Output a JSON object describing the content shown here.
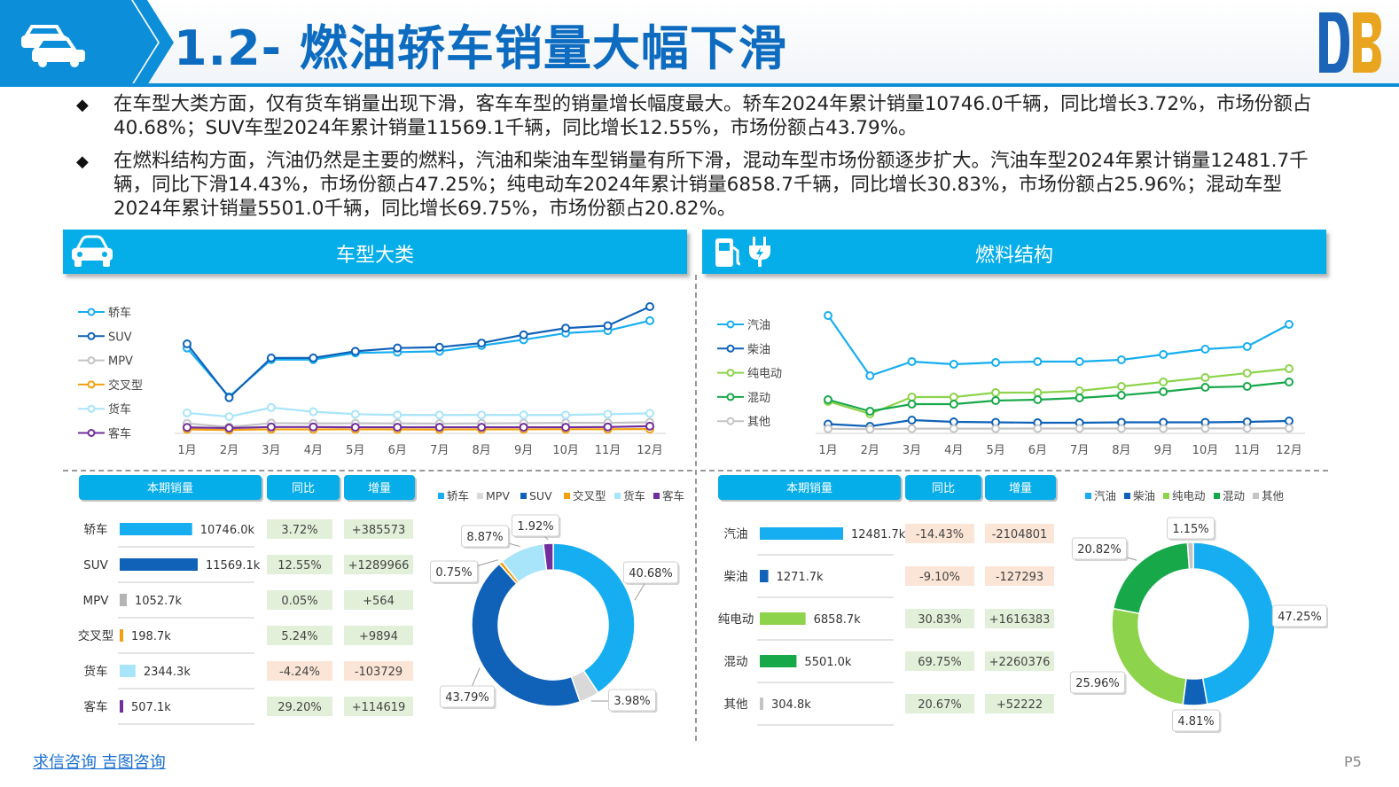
{
  "header": {
    "title": "1.2- 燃油轿车销量大幅下滑"
  },
  "bullets": [
    "在车型大类方面，仅有货车销量出现下滑，客车车型的销量增长幅度最大。轿车2024年累计销量10746.0千辆，同比增长3.72%，市场份额占40.68%；SUV车型2024年累计销量11569.1千辆，同比增长12.55%，市场份额占43.79%。",
    "在燃料结构方面，汽油仍然是主要的燃料，汽油和柴油车型销量有所下滑，混动车型市场份额逐步扩大。汽油车型2024年累计销量12481.7千辆，同比下滑14.43%，市场份额占47.25%；纯电动车2024年累计销量6858.7千辆，同比增长30.83%，市场份额占25.96%；混动车型2024年累计销量5501.0千辆，同比增长69.75%，市场份额占20.82%。"
  ],
  "panels": {
    "left_title": "车型大类",
    "right_title": "燃料结构"
  },
  "table_headers": {
    "current": "本期销量",
    "yoy": "同比",
    "inc": "增量"
  },
  "colors": {
    "primary": "#06aee9",
    "title": "#0e6cc0",
    "positive_bg": "#e2f0d9",
    "negative_bg": "#fbe5d6"
  },
  "footer": {
    "sources": "求信咨询 吉图咨询",
    "page": "P5"
  },
  "chart_data": [
    {
      "type": "line",
      "x": [
        "1月",
        "2月",
        "3月",
        "4月",
        "5月",
        "6月",
        "7月",
        "8月",
        "9月",
        "10月",
        "11月",
        "12月"
      ],
      "legend_position": "left",
      "grid": false,
      "series": [
        {
          "name": "轿车",
          "color": "#16aef0",
          "values": [
            1000,
            410,
            860,
            860,
            940,
            950,
            960,
            1030,
            1100,
            1180,
            1210,
            1330
          ]
        },
        {
          "name": "SUV",
          "color": "#1062b8",
          "values": [
            1050,
            400,
            880,
            880,
            960,
            1000,
            1010,
            1060,
            1160,
            1240,
            1270,
            1500
          ]
        },
        {
          "name": "MPV",
          "color": "#c4c4c4",
          "values": [
            88,
            45,
            92,
            88,
            90,
            88,
            86,
            88,
            92,
            95,
            95,
            102
          ]
        },
        {
          "name": "交叉型",
          "color": "#f2a00f",
          "values": [
            16,
            9,
            17,
            16,
            17,
            16,
            15,
            16,
            17,
            18,
            18,
            20
          ]
        },
        {
          "name": "货车",
          "color": "#a8e4fa",
          "values": [
            215,
            170,
            280,
            230,
            200,
            190,
            190,
            190,
            190,
            190,
            200,
            210
          ]
        },
        {
          "name": "客车",
          "color": "#702f9c",
          "values": [
            40,
            32,
            45,
            45,
            42,
            42,
            42,
            42,
            42,
            42,
            45,
            55
          ]
        }
      ]
    },
    {
      "type": "line",
      "x": [
        "1月",
        "2月",
        "3月",
        "4月",
        "5月",
        "6月",
        "7月",
        "8月",
        "9月",
        "10月",
        "11月",
        "12月"
      ],
      "legend_position": "left",
      "grid": false,
      "series": [
        {
          "name": "汽油",
          "color": "#16aef0",
          "values": [
            1300,
            620,
            780,
            750,
            770,
            780,
            780,
            800,
            860,
            920,
            950,
            1200
          ]
        },
        {
          "name": "柴油",
          "color": "#1062b8",
          "values": [
            75,
            50,
            120,
            100,
            95,
            90,
            90,
            95,
            95,
            95,
            100,
            110
          ]
        },
        {
          "name": "纯电动",
          "color": "#8dd34b",
          "values": [
            330,
            190,
            380,
            380,
            430,
            430,
            450,
            500,
            550,
            600,
            650,
            700
          ]
        },
        {
          "name": "混动",
          "color": "#17a84a",
          "values": [
            350,
            220,
            300,
            300,
            340,
            350,
            370,
            400,
            440,
            490,
            500,
            550
          ]
        },
        {
          "name": "其他",
          "color": "#c4c4c4",
          "values": [
            22,
            18,
            24,
            24,
            24,
            25,
            25,
            25,
            25,
            26,
            26,
            28
          ]
        }
      ]
    },
    {
      "type": "table",
      "rows": [
        {
          "name": "轿车",
          "value": 10746.0,
          "label": "10746.0k",
          "yoy": "3.72%",
          "inc": "+385573",
          "positive": true,
          "color": "#16aef0"
        },
        {
          "name": "SUV",
          "value": 11569.1,
          "label": "11569.1k",
          "yoy": "12.55%",
          "inc": "+1289966",
          "positive": true,
          "color": "#1062b8"
        },
        {
          "name": "MPV",
          "value": 1052.7,
          "label": "1052.7k",
          "yoy": "0.05%",
          "inc": "+564",
          "positive": true,
          "color": "#b4b4b4"
        },
        {
          "name": "交叉型",
          "value": 198.7,
          "label": "198.7k",
          "yoy": "5.24%",
          "inc": "+9894",
          "positive": true,
          "color": "#f2a00f"
        },
        {
          "name": "货车",
          "value": 2344.3,
          "label": "2344.3k",
          "yoy": "-4.24%",
          "inc": "-103729",
          "positive": false,
          "color": "#a8e4fa"
        },
        {
          "name": "客车",
          "value": 507.1,
          "label": "507.1k",
          "yoy": "29.20%",
          "inc": "+114619",
          "positive": true,
          "color": "#702f9c"
        }
      ]
    },
    {
      "type": "pie",
      "legend_position": "top",
      "legend_order": [
        "轿车",
        "MPV",
        "SUV",
        "交叉型",
        "货车",
        "客车"
      ],
      "slices": [
        {
          "name": "轿车",
          "value": 40.68,
          "label": "40.68%",
          "color": "#16aef0"
        },
        {
          "name": "MPV",
          "value": 3.98,
          "label": "3.98%",
          "color": "#d9d9d9"
        },
        {
          "name": "SUV",
          "value": 43.79,
          "label": "43.79%",
          "color": "#1062b8"
        },
        {
          "name": "交叉型",
          "value": 0.75,
          "label": "0.75%",
          "color": "#f2a00f"
        },
        {
          "name": "货车",
          "value": 8.87,
          "label": "8.87%",
          "color": "#a8e4fa"
        },
        {
          "name": "客车",
          "value": 1.92,
          "label": "1.92%",
          "color": "#702f9c"
        }
      ]
    },
    {
      "type": "table",
      "rows": [
        {
          "name": "汽油",
          "value": 12481.7,
          "label": "12481.7k",
          "yoy": "-14.43%",
          "inc": "-2104801",
          "positive": false,
          "color": "#16aef0"
        },
        {
          "name": "柴油",
          "value": 1271.7,
          "label": "1271.7k",
          "yoy": "-9.10%",
          "inc": "-127293",
          "positive": false,
          "color": "#1062b8"
        },
        {
          "name": "纯电动",
          "value": 6858.7,
          "label": "6858.7k",
          "yoy": "30.83%",
          "inc": "+1616383",
          "positive": true,
          "color": "#8dd34b"
        },
        {
          "name": "混动",
          "value": 5501.0,
          "label": "5501.0k",
          "yoy": "69.75%",
          "inc": "+2260376",
          "positive": true,
          "color": "#17a84a"
        },
        {
          "name": "其他",
          "value": 304.8,
          "label": "304.8k",
          "yoy": "20.67%",
          "inc": "+52222",
          "positive": true,
          "color": "#c4c4c4"
        }
      ]
    },
    {
      "type": "pie",
      "legend_position": "top",
      "legend_order": [
        "汽油",
        "柴油",
        "纯电动",
        "混动",
        "其他"
      ],
      "slices": [
        {
          "name": "汽油",
          "value": 47.25,
          "label": "47.25%",
          "color": "#16aef0"
        },
        {
          "name": "柴油",
          "value": 4.81,
          "label": "4.81%",
          "color": "#1062b8"
        },
        {
          "name": "纯电动",
          "value": 25.96,
          "label": "25.96%",
          "color": "#8dd34b"
        },
        {
          "name": "混动",
          "value": 20.82,
          "label": "20.82%",
          "color": "#17a84a"
        },
        {
          "name": "其他",
          "value": 1.15,
          "label": "1.15%",
          "color": "#c4c4c4"
        }
      ]
    }
  ]
}
